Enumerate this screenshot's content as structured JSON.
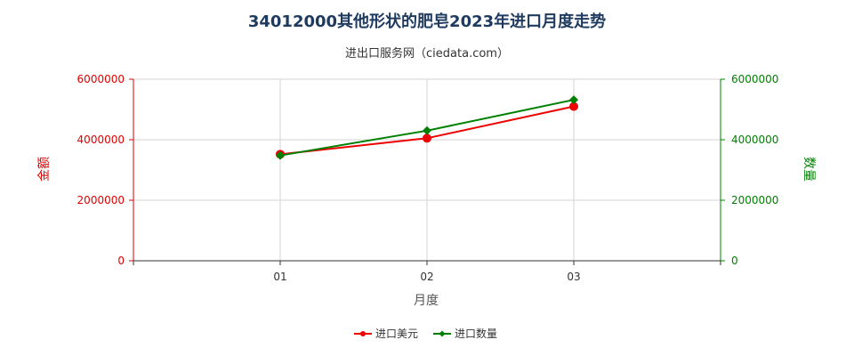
{
  "chart_data": {
    "type": "line",
    "title": "34012000其他形状的肥皂2023年进口月度走势",
    "subtitle": "进出口服务网（ciedata.com）",
    "xlabel": "月度",
    "ylabel_left": "金额",
    "ylabel_right": "数量",
    "categories": [
      "01",
      "02",
      "03"
    ],
    "ylim_left": [
      0,
      6000000
    ],
    "ylim_right": [
      0,
      6000000
    ],
    "yticks_left": [
      "0",
      "2000000",
      "4000000",
      "6000000"
    ],
    "yticks_right": [
      "0",
      "2000000",
      "4000000",
      "6000000"
    ],
    "grid": true,
    "legend_position": "bottom",
    "series": [
      {
        "name": "进口美元",
        "axis": "left",
        "color": "#ee0000",
        "marker": "circle",
        "values": [
          3520000,
          4050000,
          5100000
        ]
      },
      {
        "name": "进口数量",
        "axis": "right",
        "color": "#008000",
        "marker": "diamond",
        "values": [
          3480000,
          4300000,
          5320000
        ]
      }
    ]
  }
}
